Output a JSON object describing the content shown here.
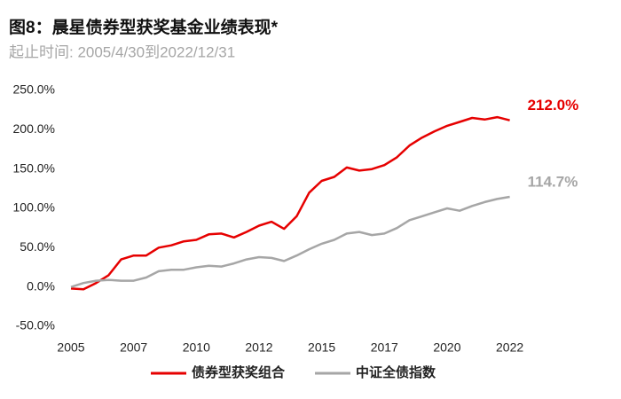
{
  "chart_data": {
    "type": "line",
    "title": "图8：晨星债券型获奖基金业绩表现*",
    "subtitle": "起止时间: 2005/4/30到2022/12/31",
    "x": [
      2005.33,
      2005.83,
      2006.33,
      2006.83,
      2007.33,
      2007.83,
      2008.33,
      2008.83,
      2009.33,
      2009.83,
      2010.33,
      2010.83,
      2011.33,
      2011.83,
      2012.33,
      2012.83,
      2013.33,
      2013.83,
      2014.33,
      2014.83,
      2015.33,
      2015.83,
      2016.33,
      2016.83,
      2017.33,
      2017.83,
      2018.33,
      2018.83,
      2019.33,
      2019.83,
      2020.33,
      2020.83,
      2021.33,
      2021.83,
      2022.33,
      2022.83
    ],
    "series": [
      {
        "name": "债券型获奖组合",
        "color": "#e60000",
        "values": [
          -2,
          -3,
          5,
          15,
          35,
          40,
          40,
          50,
          53,
          58,
          60,
          67,
          68,
          63,
          70,
          78,
          83,
          74,
          90,
          120,
          135,
          140,
          152,
          148,
          150,
          155,
          165,
          180,
          190,
          198,
          205,
          210,
          215,
          213,
          216,
          212.0
        ],
        "value_labels": [
          null,
          null,
          null,
          null,
          null,
          null,
          null,
          null,
          null,
          null,
          null,
          null,
          null,
          null,
          null,
          null,
          null,
          null,
          null,
          null,
          null,
          null,
          null,
          null,
          null,
          null,
          null,
          null,
          null,
          null,
          null,
          null,
          null,
          null,
          null,
          "212.0%"
        ]
      },
      {
        "name": "中证全债指数",
        "color": "#a6a6a6",
        "values": [
          0,
          5,
          8,
          9,
          8,
          8,
          12,
          20,
          22,
          22,
          25,
          27,
          26,
          30,
          35,
          38,
          37,
          33,
          40,
          48,
          55,
          60,
          68,
          70,
          66,
          68,
          75,
          85,
          90,
          95,
          100,
          97,
          103,
          108,
          112,
          114.7
        ],
        "value_labels": [
          null,
          null,
          null,
          null,
          null,
          null,
          null,
          null,
          null,
          null,
          null,
          null,
          null,
          null,
          null,
          null,
          null,
          null,
          null,
          null,
          null,
          null,
          null,
          null,
          null,
          null,
          null,
          null,
          null,
          null,
          null,
          null,
          null,
          null,
          null,
          "114.7%"
        ]
      }
    ],
    "xlim": [
      2005.33,
      2022.95
    ],
    "xticks": [
      {
        "value": 2005.33,
        "label": "2005"
      },
      {
        "value": 2007.83,
        "label": "2007"
      },
      {
        "value": 2010.33,
        "label": "2010"
      },
      {
        "value": 2012.83,
        "label": "2012"
      },
      {
        "value": 2015.33,
        "label": "2015"
      },
      {
        "value": 2017.83,
        "label": "2017"
      },
      {
        "value": 2020.33,
        "label": "2020"
      },
      {
        "value": 2022.83,
        "label": "2022"
      }
    ],
    "ylim": [
      -50,
      250
    ],
    "yticks": [
      {
        "value": -50,
        "label": "-50.0%"
      },
      {
        "value": 0,
        "label": "0.0%"
      },
      {
        "value": 50,
        "label": "50.0%"
      },
      {
        "value": 100,
        "label": "100.0%"
      },
      {
        "value": 150,
        "label": "150.0%"
      },
      {
        "value": 200,
        "label": "200.0%"
      },
      {
        "value": 250,
        "label": "250.0%"
      }
    ],
    "grid": false,
    "legend": "bottom"
  }
}
